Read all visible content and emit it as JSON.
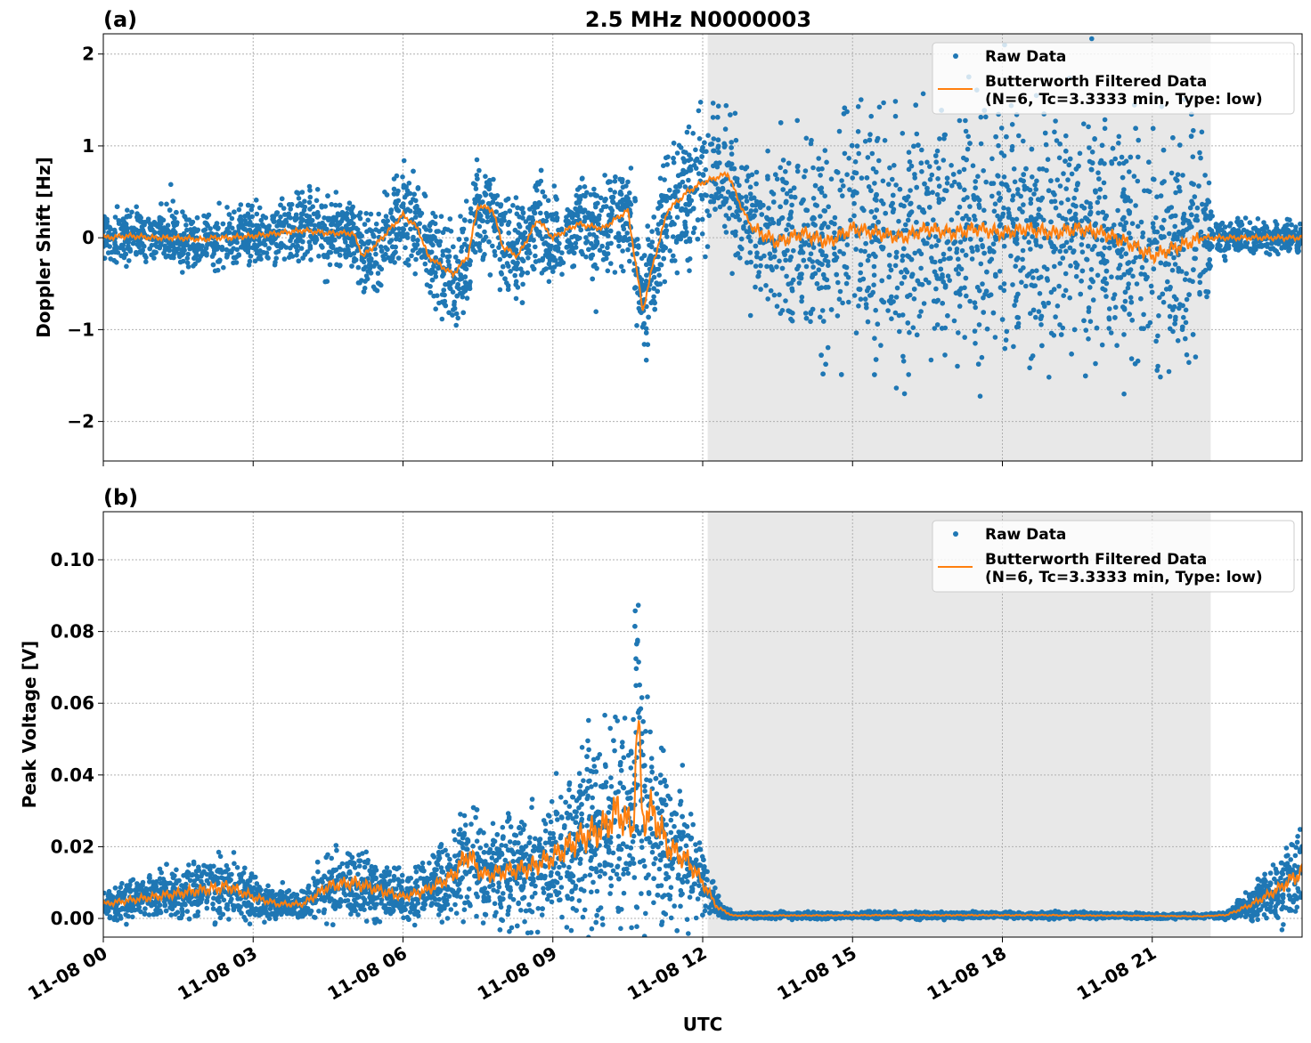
{
  "chart_data": [
    {
      "type": "scatter",
      "panel_label": "(a)",
      "title": "2.5 MHz N0000003",
      "xlabel": "",
      "ylabel": "Doppler Shift [Hz]",
      "xlim_hours": [
        0,
        24
      ],
      "ylim": [
        -2.43,
        2.22
      ],
      "yticks": [
        2,
        1,
        0,
        -1,
        -2
      ],
      "ytick_labels": [
        "2",
        "1",
        "0",
        "−1",
        "−2"
      ],
      "grid": true,
      "shaded_region_hours": [
        12.1,
        22.17
      ],
      "legend": {
        "placement": "top-right",
        "entries": [
          "Raw Data",
          "Butterworth Filtered Data",
          "(N=6, Tc=3.3333 min, Type: low)"
        ]
      },
      "series": [
        {
          "name": "Butterworth Filtered Data",
          "color": "#ff7f0e",
          "x": [
            0,
            0.5,
            1,
            1.5,
            2,
            2.2,
            2.5,
            3,
            3.5,
            4,
            4.5,
            5,
            5.2,
            5.5,
            6,
            6.3,
            6.5,
            7,
            7.3,
            7.5,
            7.8,
            8,
            8.3,
            8.7,
            9,
            9.5,
            10,
            10.5,
            10.8,
            11,
            11.3,
            11.7,
            12,
            12.5,
            12.8,
            13,
            13.5,
            14,
            14.5,
            15,
            15.5,
            16,
            16.5,
            17,
            17.5,
            18,
            18.5,
            19,
            19.5,
            20,
            20.5,
            21,
            21.5,
            22,
            23,
            24
          ],
          "y": [
            0,
            0.02,
            0,
            0,
            -0.02,
            0,
            0,
            0.02,
            0.05,
            0.08,
            0.05,
            0.05,
            -0.2,
            -0.05,
            0.25,
            0.1,
            -0.2,
            -0.4,
            -0.2,
            0.35,
            0.3,
            -0.1,
            -0.2,
            0.2,
            0,
            0.15,
            0.1,
            0.3,
            -0.8,
            -0.3,
            0.3,
            0.5,
            0.6,
            0.7,
            0.3,
            0.1,
            -0.05,
            0.05,
            -0.05,
            0.1,
            0.05,
            0,
            0.1,
            0.05,
            0.1,
            0.05,
            0.1,
            0.05,
            0.1,
            0.05,
            -0.05,
            -0.2,
            -0.1,
            0,
            0,
            0
          ]
        },
        {
          "name": "Raw Data",
          "color": "#1f77b4",
          "spread_x": [
            0,
            2,
            5,
            6,
            7,
            8,
            10,
            11,
            12,
            12.8,
            13,
            15,
            22,
            22.2,
            24
          ],
          "spread": [
            0.15,
            0.2,
            0.25,
            0.3,
            0.35,
            0.3,
            0.3,
            0.4,
            0.45,
            0.4,
            0.5,
            0.8,
            0.8,
            0.12,
            0.1
          ]
        }
      ]
    },
    {
      "type": "scatter",
      "panel_label": "(b)",
      "title": "",
      "xlabel": "UTC",
      "ylabel": "Peak Voltage [V]",
      "xlim_hours": [
        0,
        24
      ],
      "ylim": [
        -0.0052,
        0.1134
      ],
      "yticks": [
        0.1,
        0.08,
        0.06,
        0.04,
        0.02,
        0.0
      ],
      "ytick_labels": [
        "0.10",
        "0.08",
        "0.06",
        "0.04",
        "0.02",
        "0.00"
      ],
      "xticks_hours": [
        0,
        3,
        6,
        9,
        12,
        15,
        18,
        21
      ],
      "xtick_labels": [
        "11-08 00",
        "11-08 03",
        "11-08 06",
        "11-08 09",
        "11-08 12",
        "11-08 15",
        "11-08 18",
        "11-08 21"
      ],
      "grid": true,
      "shaded_region_hours": [
        12.1,
        22.17
      ],
      "legend": {
        "placement": "top-right",
        "entries": [
          "Raw Data",
          "Butterworth Filtered Data",
          "(N=6, Tc=3.3333 min, Type: low)"
        ]
      },
      "series": [
        {
          "name": "Butterworth Filtered Data",
          "color": "#ff7f0e",
          "x": [
            0,
            1,
            2,
            2.5,
            3,
            3.5,
            4,
            4.5,
            5,
            5.5,
            6,
            6.5,
            7,
            7.3,
            7.6,
            8,
            8.5,
            9,
            9.5,
            10,
            10.3,
            10.6,
            10.7,
            10.8,
            11,
            11.3,
            11.7,
            12,
            12.3,
            12.6,
            13,
            16,
            19,
            22,
            22.5,
            23,
            23.5,
            24
          ],
          "y": [
            0.004,
            0.006,
            0.008,
            0.009,
            0.006,
            0.004,
            0.004,
            0.009,
            0.01,
            0.008,
            0.006,
            0.008,
            0.012,
            0.018,
            0.012,
            0.013,
            0.014,
            0.017,
            0.022,
            0.025,
            0.03,
            0.025,
            0.055,
            0.028,
            0.03,
            0.02,
            0.016,
            0.01,
            0.003,
            0.0008,
            0.0008,
            0.0009,
            0.0009,
            0.0006,
            0.001,
            0.004,
            0.008,
            0.013
          ]
        },
        {
          "name": "Raw Data",
          "color": "#1f77b4",
          "relative_spread": 0.65
        }
      ]
    }
  ]
}
